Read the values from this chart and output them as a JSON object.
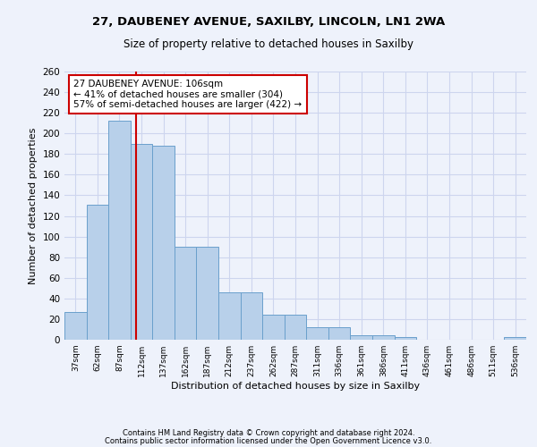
{
  "title1": "27, DAUBENEY AVENUE, SAXILBY, LINCOLN, LN1 2WA",
  "title2": "Size of property relative to detached houses in Saxilby",
  "xlabel": "Distribution of detached houses by size in Saxilby",
  "ylabel": "Number of detached properties",
  "categories": [
    "37sqm",
    "62sqm",
    "87sqm",
    "112sqm",
    "137sqm",
    "162sqm",
    "187sqm",
    "212sqm",
    "237sqm",
    "262sqm",
    "287sqm",
    "311sqm",
    "336sqm",
    "361sqm",
    "386sqm",
    "411sqm",
    "436sqm",
    "461sqm",
    "486sqm",
    "511sqm",
    "536sqm"
  ],
  "values": [
    27,
    131,
    212,
    190,
    188,
    90,
    90,
    46,
    46,
    24,
    24,
    12,
    12,
    4,
    4,
    3,
    0,
    0,
    0,
    0,
    3
  ],
  "bar_color": "#b8d0ea",
  "bar_edge_color": "#6aa0cc",
  "annotation_text": "27 DAUBENEY AVENUE: 106sqm\n← 41% of detached houses are smaller (304)\n57% of semi-detached houses are larger (422) →",
  "annotation_box_color": "#ffffff",
  "annotation_box_edge": "#cc0000",
  "vline_color": "#cc0000",
  "ylim": [
    0,
    260
  ],
  "yticks": [
    0,
    20,
    40,
    60,
    80,
    100,
    120,
    140,
    160,
    180,
    200,
    220,
    240,
    260
  ],
  "footer1": "Contains HM Land Registry data © Crown copyright and database right 2024.",
  "footer2": "Contains public sector information licensed under the Open Government Licence v3.0.",
  "background_color": "#eef2fb",
  "grid_color": "#cdd5ee"
}
